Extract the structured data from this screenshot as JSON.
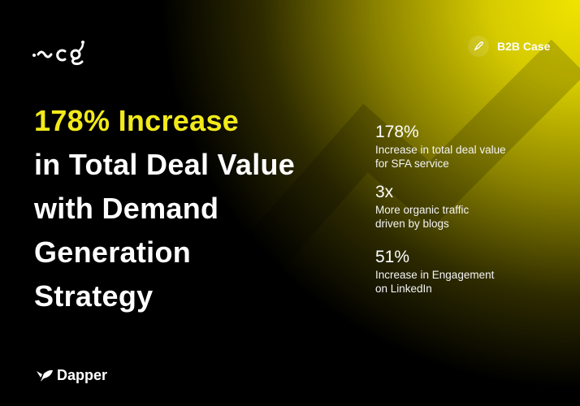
{
  "brand": {
    "client_logo": "scg",
    "agency_logo": "Dapper"
  },
  "badge": {
    "icon": "rocket-icon",
    "label": "B2B Case"
  },
  "headline": {
    "highlight": "178% Increase",
    "lines": [
      "in Total Deal Value",
      "with Demand",
      "Generation",
      "Strategy"
    ]
  },
  "stats": [
    {
      "value": "178%",
      "desc_1": "Increase in total deal value",
      "desc_2": "for SFA service"
    },
    {
      "value": "3x",
      "desc_1": "More organic traffic",
      "desc_2": "driven by blogs"
    },
    {
      "value": "51%",
      "desc_1": "Increase in Engagement",
      "desc_2": "on LinkedIn"
    }
  ],
  "colors": {
    "accent": "#f2ea1a",
    "background": "#000000"
  }
}
